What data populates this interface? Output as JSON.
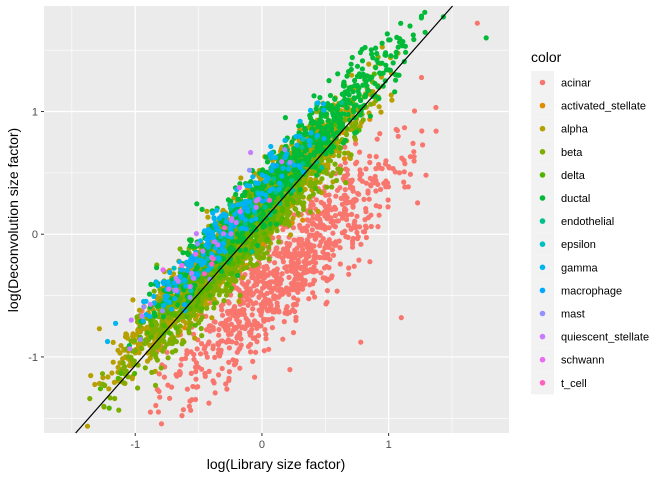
{
  "chart_data": {
    "type": "scatter",
    "xlabel": "log(Library size factor)",
    "ylabel": "log(Deconvolution size factor)",
    "xlim": [
      -1.72,
      1.95
    ],
    "ylim": [
      -1.62,
      1.86
    ],
    "x_ticks": [
      -1,
      0,
      1
    ],
    "x_tick_labels": [
      "-1",
      "0",
      "1"
    ],
    "y_ticks": [
      -1,
      0,
      1
    ],
    "y_tick_labels": [
      "-1",
      "0",
      "1"
    ],
    "grid": true,
    "reference_line": {
      "slope": 1.17,
      "intercept": 0.1
    },
    "legend": {
      "title": "color",
      "placement": "right",
      "entries": [
        {
          "label": "acinar",
          "color": "#F8766D"
        },
        {
          "label": "activated_stellate",
          "color": "#DE8C00"
        },
        {
          "label": "alpha",
          "color": "#B79F00"
        },
        {
          "label": "beta",
          "color": "#7CAE00"
        },
        {
          "label": "delta",
          "color": "#53B400"
        },
        {
          "label": "ductal",
          "color": "#00BA38"
        },
        {
          "label": "endothelial",
          "color": "#00C08B"
        },
        {
          "label": "epsilon",
          "color": "#00BFC4"
        },
        {
          "label": "gamma",
          "color": "#00B4F0"
        },
        {
          "label": "macrophage",
          "color": "#00A9FF"
        },
        {
          "label": "mast",
          "color": "#9590FF"
        },
        {
          "label": "quiescent_stellate",
          "color": "#C77CFF"
        },
        {
          "label": "schwann",
          "color": "#E76BF3"
        },
        {
          "label": "t_cell",
          "color": "#FF62BC"
        }
      ]
    },
    "series": [
      {
        "name": "acinar",
        "color": "#F8766D",
        "n": 900,
        "x_range": [
          -1.15,
          1.6
        ],
        "slope": 1.0,
        "intercept": -0.5,
        "spread": 0.22
      },
      {
        "name": "activated_stellate",
        "color": "#DE8C00",
        "n": 90,
        "x_range": [
          -1.2,
          1.2
        ],
        "slope": 1.1,
        "intercept": 0.15,
        "spread": 0.14
      },
      {
        "name": "alpha",
        "color": "#B79F00",
        "n": 1700,
        "x_range": [
          -1.45,
          1.15
        ],
        "slope": 1.1,
        "intercept": 0.2,
        "spread": 0.14
      },
      {
        "name": "beta",
        "color": "#7CAE00",
        "n": 1000,
        "x_range": [
          -1.45,
          1.1
        ],
        "slope": 1.1,
        "intercept": 0.12,
        "spread": 0.15
      },
      {
        "name": "delta",
        "color": "#53B400",
        "n": 300,
        "x_range": [
          -1.4,
          1.05
        ],
        "slope": 1.1,
        "intercept": 0.15,
        "spread": 0.14
      },
      {
        "name": "ductal",
        "color": "#00BA38",
        "n": 700,
        "x_range": [
          -1.3,
          1.75
        ],
        "slope": 1.1,
        "intercept": 0.32,
        "spread": 0.14
      },
      {
        "name": "endothelial",
        "color": "#00C08B",
        "n": 40,
        "x_range": [
          -1.0,
          1.0
        ],
        "slope": 1.1,
        "intercept": 0.25,
        "spread": 0.13
      },
      {
        "name": "epsilon",
        "color": "#00BFC4",
        "n": 15,
        "x_range": [
          -1.2,
          0.6
        ],
        "slope": 1.1,
        "intercept": 0.35,
        "spread": 0.1
      },
      {
        "name": "gamma",
        "color": "#00B4F0",
        "n": 180,
        "x_range": [
          -1.4,
          0.8
        ],
        "slope": 1.1,
        "intercept": 0.38,
        "spread": 0.12
      },
      {
        "name": "macrophage",
        "color": "#00A9FF",
        "n": 15,
        "x_range": [
          -1.3,
          0.5
        ],
        "slope": 1.1,
        "intercept": 0.35,
        "spread": 0.12
      },
      {
        "name": "mast",
        "color": "#9590FF",
        "n": 10,
        "x_range": [
          -1.3,
          0.5
        ],
        "slope": 1.1,
        "intercept": 0.35,
        "spread": 0.12
      },
      {
        "name": "quiescent_stellate",
        "color": "#C77CFF",
        "n": 25,
        "x_range": [
          -1.35,
          0.5
        ],
        "slope": 1.1,
        "intercept": 0.38,
        "spread": 0.12
      },
      {
        "name": "schwann",
        "color": "#E76BF3",
        "n": 6,
        "x_range": [
          -1.3,
          0.2
        ],
        "slope": 1.1,
        "intercept": 0.4,
        "spread": 0.1
      },
      {
        "name": "t_cell",
        "color": "#FF62BC",
        "n": 5,
        "x_range": [
          -1.0,
          0.3
        ],
        "slope": 1.1,
        "intercept": 0.3,
        "spread": 0.1
      }
    ],
    "notable_points": [
      {
        "series": "acinar",
        "x": 1.7,
        "y": 1.72
      },
      {
        "series": "ductal",
        "x": 1.77,
        "y": 1.6
      },
      {
        "series": "acinar",
        "x": 1.1,
        "y": -0.68
      },
      {
        "series": "acinar",
        "x": 0.78,
        "y": -0.88
      },
      {
        "series": "acinar",
        "x": -0.88,
        "y": -1.45
      },
      {
        "series": "acinar",
        "x": -0.62,
        "y": -1.43
      }
    ]
  }
}
